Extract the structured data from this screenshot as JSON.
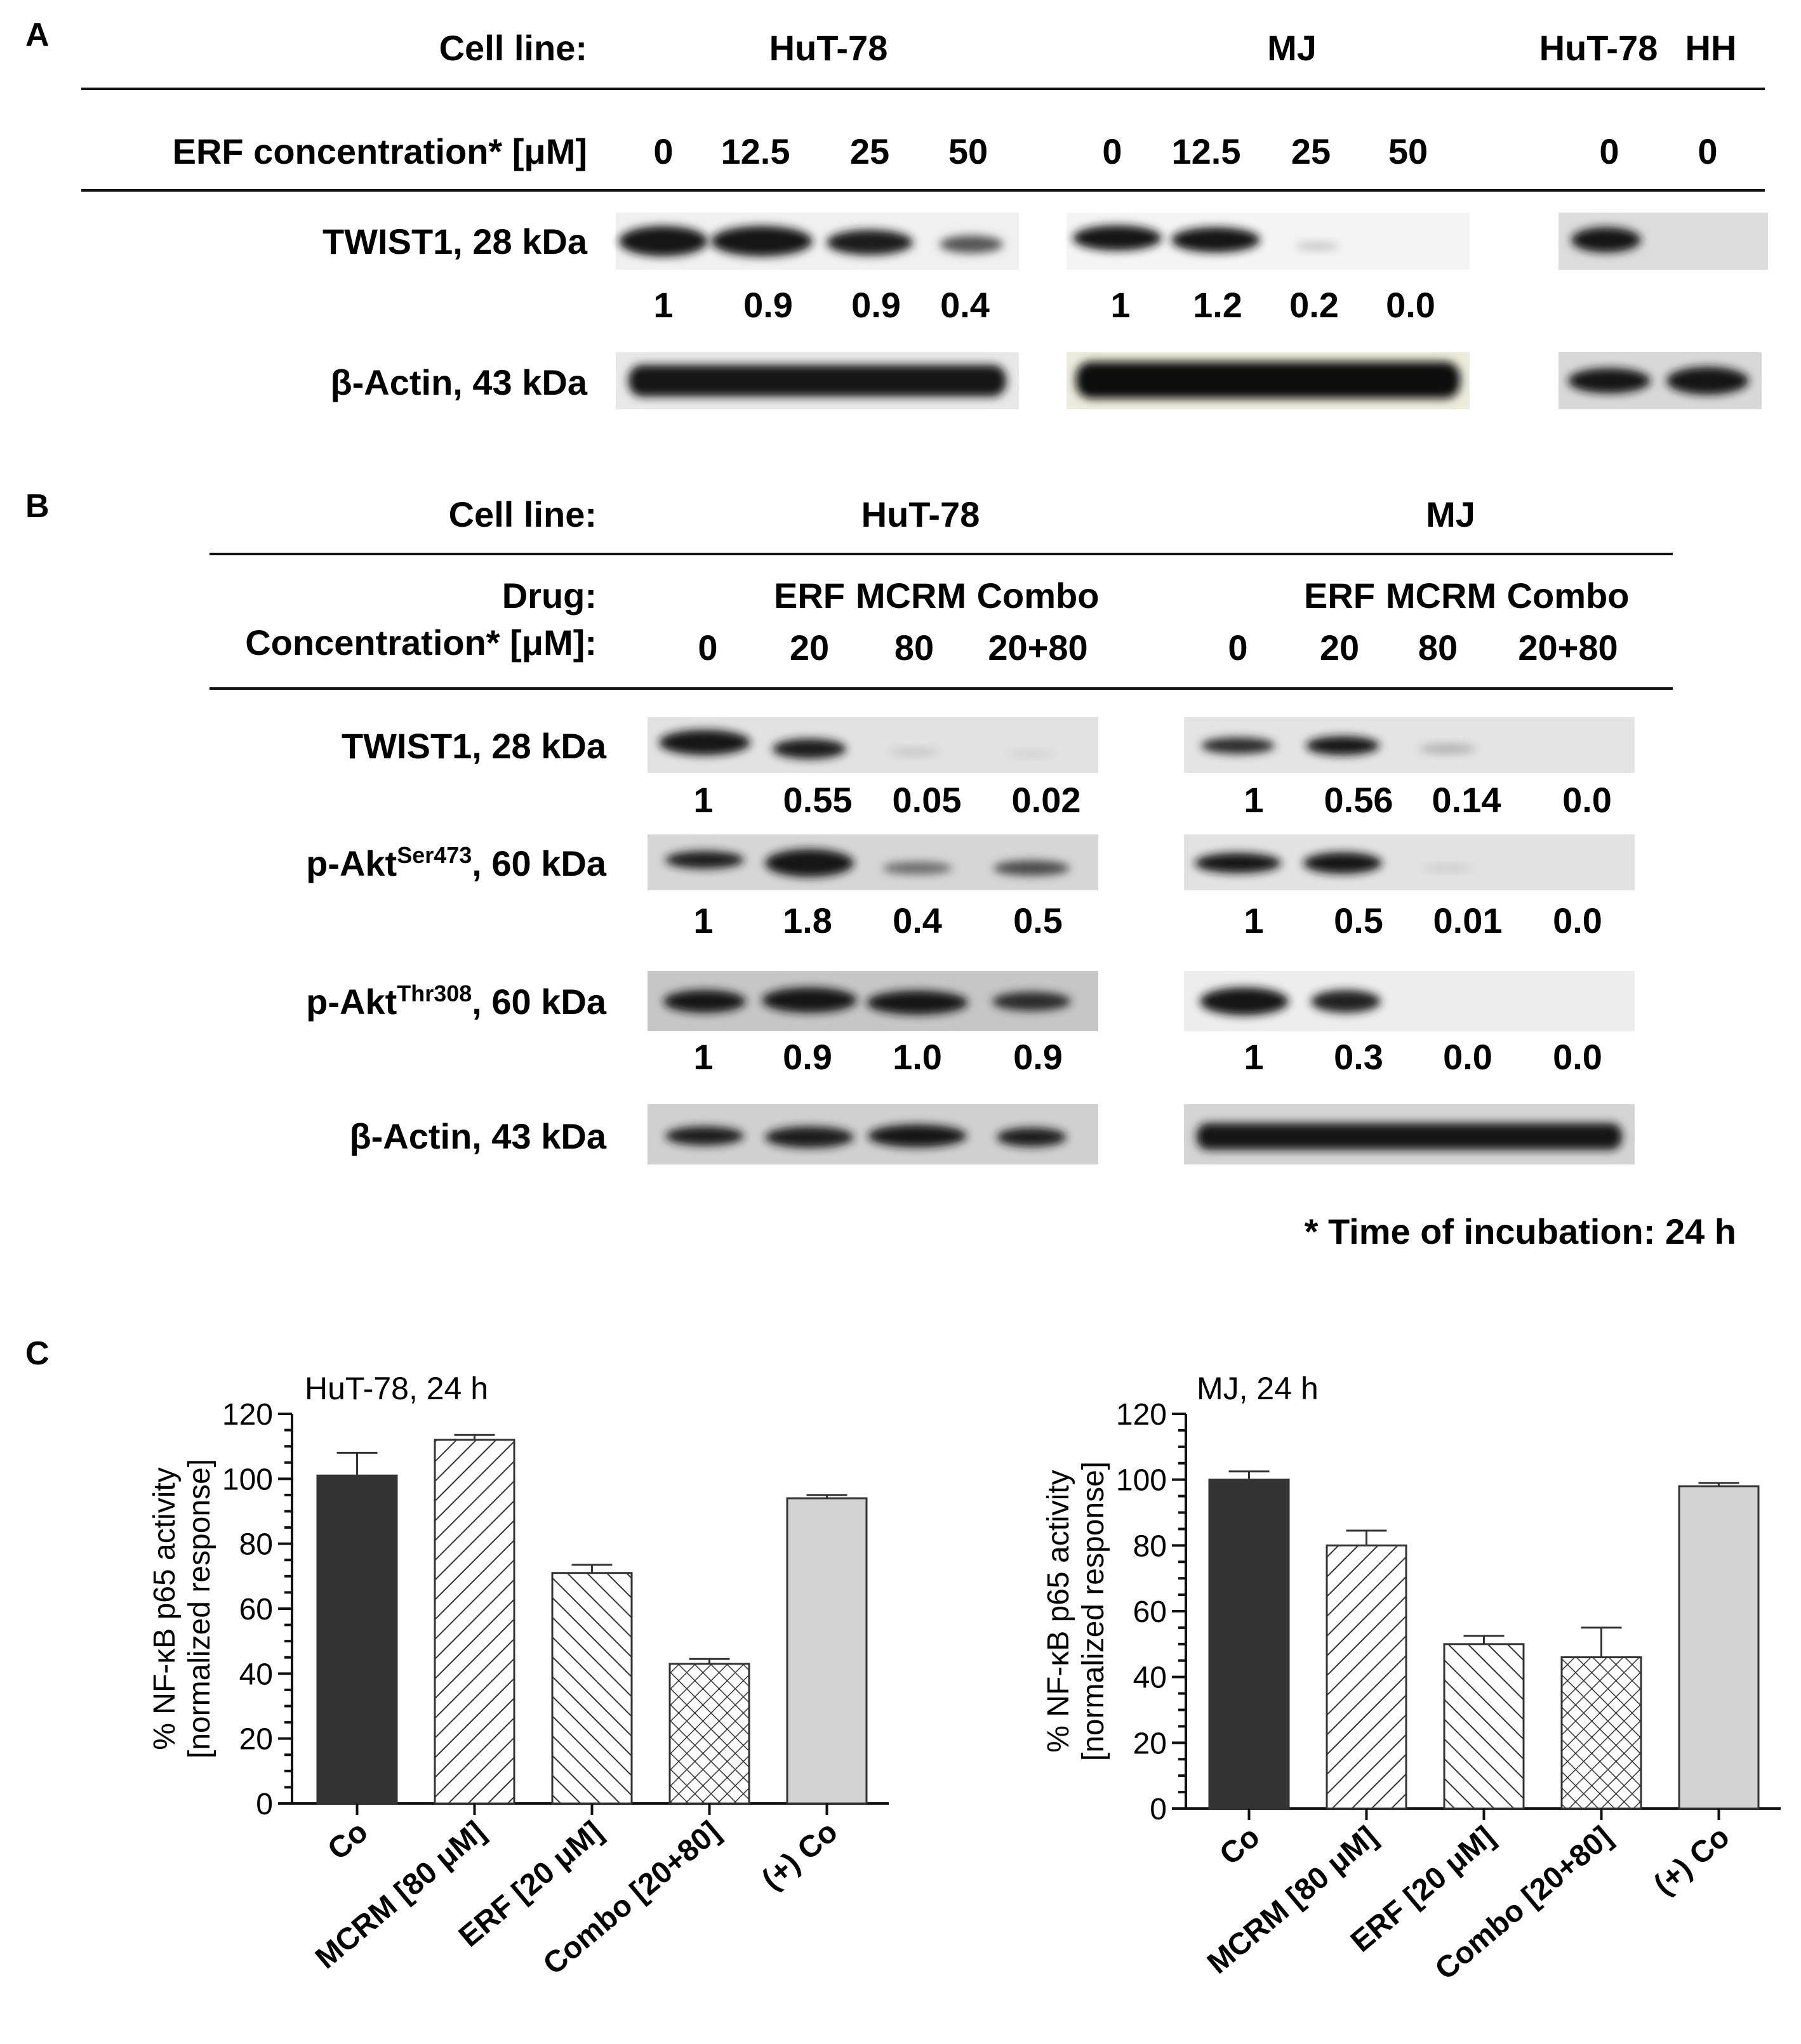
{
  "panel_a": {
    "label": "A",
    "cell_line_label": "Cell line:",
    "cell_lines": [
      "HuT-78",
      "MJ",
      "HuT-78",
      "HH"
    ],
    "conc_label": "ERF concentration* [μM]",
    "conc_hut78": [
      "0",
      "12.5",
      "25",
      "50"
    ],
    "conc_mj": [
      "0",
      "12.5",
      "25",
      "50"
    ],
    "conc_ctrl": [
      "0",
      "0"
    ],
    "twist_label": "TWIST1, 28 kDa",
    "twist_values_hut78": [
      "1",
      "0.9",
      "0.9",
      "0.4"
    ],
    "twist_values_mj": [
      "1",
      "1.2",
      "0.2",
      "0.0"
    ],
    "actin_label": "β-Actin, 43 kDa"
  },
  "panel_b": {
    "label": "B",
    "cell_line_label": "Cell line:",
    "cell_lines": [
      "HuT-78",
      "MJ"
    ],
    "drug_label": "Drug:",
    "drugs": [
      "ERF",
      "MCRM",
      "Combo"
    ],
    "conc_label": "Concentration* [μM]:",
    "conc": [
      "0",
      "20",
      "80",
      "20+80"
    ],
    "twist_label": "TWIST1, 28 kDa",
    "twist_values_hut78": [
      "1",
      "0.55",
      "0.05",
      "0.02"
    ],
    "twist_values_mj": [
      "1",
      "0.56",
      "0.14",
      "0.0"
    ],
    "pakt473_label_main": "p-Akt",
    "pakt473_label_sup": "Ser473",
    "pakt473_label_tail": ", 60 kDa",
    "pakt473_values_hut78": [
      "1",
      "1.8",
      "0.4",
      "0.5"
    ],
    "pakt473_values_mj": [
      "1",
      "0.5",
      "0.01",
      "0.0"
    ],
    "pakt308_label_main": "p-Akt",
    "pakt308_label_sup": "Thr308",
    "pakt308_label_tail": ", 60 kDa",
    "pakt308_values_hut78": [
      "1",
      "0.9",
      "1.0",
      "0.9"
    ],
    "pakt308_values_mj": [
      "1",
      "0.3",
      "0.0",
      "0.0"
    ],
    "actin_label": "β-Actin, 43 kDa",
    "footnote": "* Time of incubation: 24 h"
  },
  "panel_c": {
    "label": "C"
  },
  "chart_data": [
    {
      "type": "bar",
      "title": "HuT-78, 24 h",
      "ylabel_line1": "% NF-κB p65 activity",
      "ylabel_line2": "[normalized response]",
      "categories": [
        "Co",
        "MCRM [80 μM]",
        "ERF [20 μM]",
        "Combo [20+80]",
        "(+) Co"
      ],
      "values": [
        101,
        112,
        71,
        43,
        94
      ],
      "errors": [
        7,
        1.5,
        2.5,
        1.5,
        1
      ],
      "patterns": [
        "solid-dark",
        "hatch-forward",
        "hatch-back",
        "crosshatch",
        "solid-light"
      ],
      "yticks": [
        0,
        20,
        40,
        60,
        80,
        100,
        120
      ],
      "ylim": [
        0,
        120
      ],
      "grid": false
    },
    {
      "type": "bar",
      "title": "MJ, 24 h",
      "ylabel_line1": "% NF-κB p65 activity",
      "ylabel_line2": "[normalized response]",
      "categories": [
        "Co",
        "MCRM [80 μM]",
        "ERF [20 μM]",
        "Combo [20+80]",
        "(+) Co"
      ],
      "values": [
        100,
        80,
        50,
        46,
        98
      ],
      "errors": [
        2.5,
        4.5,
        2.5,
        9,
        1
      ],
      "patterns": [
        "solid-dark",
        "hatch-forward",
        "hatch-back",
        "crosshatch",
        "solid-light"
      ],
      "yticks": [
        0,
        20,
        40,
        60,
        80,
        100,
        120
      ],
      "ylim": [
        0,
        120
      ],
      "grid": false
    }
  ],
  "colors": {
    "bar_dark": "#333333",
    "bar_light": "#d2d2d2",
    "band": "#141414",
    "blot_bg": "#e4e4e4"
  }
}
